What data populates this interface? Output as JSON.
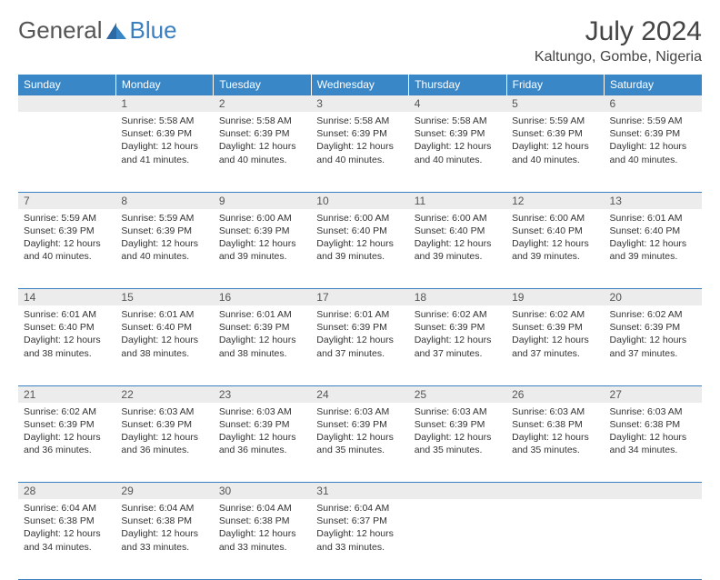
{
  "logo": {
    "general": "General",
    "blue": "Blue"
  },
  "header": {
    "month_title": "July 2024",
    "location": "Kaltungo, Gombe, Nigeria"
  },
  "colors": {
    "header_bg": "#3a87c8",
    "header_text": "#ffffff",
    "daynum_bg": "#ececec",
    "rule": "#3a7fbf",
    "text": "#333333",
    "logo_blue": "#3a7fbf",
    "logo_gray": "#555555"
  },
  "day_headers": [
    "Sunday",
    "Monday",
    "Tuesday",
    "Wednesday",
    "Thursday",
    "Friday",
    "Saturday"
  ],
  "weeks": [
    {
      "nums": [
        "",
        "1",
        "2",
        "3",
        "4",
        "5",
        "6"
      ],
      "cells": [
        [],
        [
          "Sunrise: 5:58 AM",
          "Sunset: 6:39 PM",
          "Daylight: 12 hours and 41 minutes."
        ],
        [
          "Sunrise: 5:58 AM",
          "Sunset: 6:39 PM",
          "Daylight: 12 hours and 40 minutes."
        ],
        [
          "Sunrise: 5:58 AM",
          "Sunset: 6:39 PM",
          "Daylight: 12 hours and 40 minutes."
        ],
        [
          "Sunrise: 5:58 AM",
          "Sunset: 6:39 PM",
          "Daylight: 12 hours and 40 minutes."
        ],
        [
          "Sunrise: 5:59 AM",
          "Sunset: 6:39 PM",
          "Daylight: 12 hours and 40 minutes."
        ],
        [
          "Sunrise: 5:59 AM",
          "Sunset: 6:39 PM",
          "Daylight: 12 hours and 40 minutes."
        ]
      ]
    },
    {
      "nums": [
        "7",
        "8",
        "9",
        "10",
        "11",
        "12",
        "13"
      ],
      "cells": [
        [
          "Sunrise: 5:59 AM",
          "Sunset: 6:39 PM",
          "Daylight: 12 hours and 40 minutes."
        ],
        [
          "Sunrise: 5:59 AM",
          "Sunset: 6:39 PM",
          "Daylight: 12 hours and 40 minutes."
        ],
        [
          "Sunrise: 6:00 AM",
          "Sunset: 6:39 PM",
          "Daylight: 12 hours and 39 minutes."
        ],
        [
          "Sunrise: 6:00 AM",
          "Sunset: 6:40 PM",
          "Daylight: 12 hours and 39 minutes."
        ],
        [
          "Sunrise: 6:00 AM",
          "Sunset: 6:40 PM",
          "Daylight: 12 hours and 39 minutes."
        ],
        [
          "Sunrise: 6:00 AM",
          "Sunset: 6:40 PM",
          "Daylight: 12 hours and 39 minutes."
        ],
        [
          "Sunrise: 6:01 AM",
          "Sunset: 6:40 PM",
          "Daylight: 12 hours and 39 minutes."
        ]
      ]
    },
    {
      "nums": [
        "14",
        "15",
        "16",
        "17",
        "18",
        "19",
        "20"
      ],
      "cells": [
        [
          "Sunrise: 6:01 AM",
          "Sunset: 6:40 PM",
          "Daylight: 12 hours and 38 minutes."
        ],
        [
          "Sunrise: 6:01 AM",
          "Sunset: 6:40 PM",
          "Daylight: 12 hours and 38 minutes."
        ],
        [
          "Sunrise: 6:01 AM",
          "Sunset: 6:39 PM",
          "Daylight: 12 hours and 38 minutes."
        ],
        [
          "Sunrise: 6:01 AM",
          "Sunset: 6:39 PM",
          "Daylight: 12 hours and 37 minutes."
        ],
        [
          "Sunrise: 6:02 AM",
          "Sunset: 6:39 PM",
          "Daylight: 12 hours and 37 minutes."
        ],
        [
          "Sunrise: 6:02 AM",
          "Sunset: 6:39 PM",
          "Daylight: 12 hours and 37 minutes."
        ],
        [
          "Sunrise: 6:02 AM",
          "Sunset: 6:39 PM",
          "Daylight: 12 hours and 37 minutes."
        ]
      ]
    },
    {
      "nums": [
        "21",
        "22",
        "23",
        "24",
        "25",
        "26",
        "27"
      ],
      "cells": [
        [
          "Sunrise: 6:02 AM",
          "Sunset: 6:39 PM",
          "Daylight: 12 hours and 36 minutes."
        ],
        [
          "Sunrise: 6:03 AM",
          "Sunset: 6:39 PM",
          "Daylight: 12 hours and 36 minutes."
        ],
        [
          "Sunrise: 6:03 AM",
          "Sunset: 6:39 PM",
          "Daylight: 12 hours and 36 minutes."
        ],
        [
          "Sunrise: 6:03 AM",
          "Sunset: 6:39 PM",
          "Daylight: 12 hours and 35 minutes."
        ],
        [
          "Sunrise: 6:03 AM",
          "Sunset: 6:39 PM",
          "Daylight: 12 hours and 35 minutes."
        ],
        [
          "Sunrise: 6:03 AM",
          "Sunset: 6:38 PM",
          "Daylight: 12 hours and 35 minutes."
        ],
        [
          "Sunrise: 6:03 AM",
          "Sunset: 6:38 PM",
          "Daylight: 12 hours and 34 minutes."
        ]
      ]
    },
    {
      "nums": [
        "28",
        "29",
        "30",
        "31",
        "",
        "",
        ""
      ],
      "cells": [
        [
          "Sunrise: 6:04 AM",
          "Sunset: 6:38 PM",
          "Daylight: 12 hours and 34 minutes."
        ],
        [
          "Sunrise: 6:04 AM",
          "Sunset: 6:38 PM",
          "Daylight: 12 hours and 33 minutes."
        ],
        [
          "Sunrise: 6:04 AM",
          "Sunset: 6:38 PM",
          "Daylight: 12 hours and 33 minutes."
        ],
        [
          "Sunrise: 6:04 AM",
          "Sunset: 6:37 PM",
          "Daylight: 12 hours and 33 minutes."
        ],
        [],
        [],
        []
      ]
    }
  ]
}
